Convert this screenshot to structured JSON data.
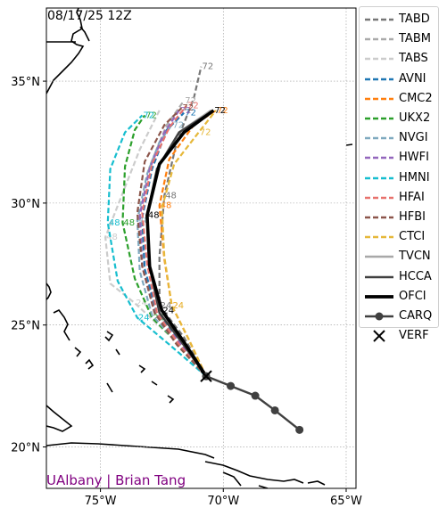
{
  "chart_data": {
    "type": "line",
    "title": "08/17/25 12Z",
    "credit": "UAlbany | Brian Tang",
    "xlim": [
      -77.2,
      -64.6
    ],
    "ylim": [
      18.3,
      38.0
    ],
    "x_ticks": [
      {
        "v": -75,
        "label": "75°W"
      },
      {
        "v": -70,
        "label": "70°W"
      },
      {
        "v": -65,
        "label": "65°W"
      }
    ],
    "y_ticks": [
      {
        "v": 20,
        "label": "20°N"
      },
      {
        "v": 25,
        "label": "25°N"
      },
      {
        "v": 30,
        "label": "30°N"
      },
      {
        "v": 35,
        "label": "35°N"
      }
    ],
    "grid": true,
    "legend_position": "outside-right",
    "series": [
      {
        "name": "TABD",
        "color": "#777777",
        "style": "dash",
        "points": [
          [
            -70.7,
            22.9
          ],
          [
            -71.6,
            24.5
          ],
          [
            -72.6,
            25.8
          ],
          [
            -72.6,
            27.8
          ],
          [
            -72.4,
            30.3
          ],
          [
            -71.9,
            32.5
          ],
          [
            -71.2,
            34.3
          ],
          [
            -70.9,
            35.6
          ]
        ],
        "labels": [
          {
            "text": "24",
            "i": 2
          },
          {
            "text": "48",
            "i": 4
          },
          {
            "text": "72",
            "i": 7
          }
        ]
      },
      {
        "name": "TABM",
        "color": "#aaaaaa",
        "style": "dash",
        "points": [
          [
            -70.7,
            22.9
          ],
          [
            -71.7,
            24.4
          ],
          [
            -72.8,
            25.6
          ],
          [
            -73.2,
            27.3
          ],
          [
            -73.4,
            29.5
          ],
          [
            -73.0,
            31.5
          ],
          [
            -72.3,
            33.2
          ],
          [
            -71.6,
            34.2
          ]
        ],
        "labels": [
          {
            "text": "72",
            "i": 7
          }
        ]
      },
      {
        "name": "TABS",
        "color": "#cccccc",
        "style": "dash",
        "points": [
          [
            -70.7,
            22.9
          ],
          [
            -72.0,
            24.4
          ],
          [
            -73.6,
            25.9
          ],
          [
            -74.6,
            26.7
          ],
          [
            -74.8,
            28.6
          ],
          [
            -74.1,
            30.4
          ],
          [
            -73.4,
            32.2
          ],
          [
            -72.6,
            33.8
          ]
        ],
        "labels": [
          {
            "text": "24",
            "i": 2
          },
          {
            "text": "48",
            "i": 4
          }
        ]
      },
      {
        "name": "AVNI",
        "color": "#1f77b4",
        "style": "dash",
        "points": [
          [
            -70.7,
            22.9
          ],
          [
            -71.8,
            24.3
          ],
          [
            -72.7,
            25.5
          ],
          [
            -73.2,
            27.3
          ],
          [
            -73.3,
            29.4
          ],
          [
            -72.9,
            31.4
          ],
          [
            -72.3,
            33.0
          ],
          [
            -71.6,
            33.7
          ]
        ],
        "labels": [
          {
            "text": "72",
            "i": 7
          }
        ]
      },
      {
        "name": "CMC2",
        "color": "#ff7f0e",
        "style": "dash",
        "points": [
          [
            -70.7,
            22.9
          ],
          [
            -71.4,
            24.4
          ],
          [
            -72.1,
            25.8
          ],
          [
            -72.4,
            27.7
          ],
          [
            -72.6,
            29.9
          ],
          [
            -72.2,
            31.8
          ],
          [
            -71.2,
            33.2
          ],
          [
            -70.3,
            33.8
          ]
        ],
        "labels": [
          {
            "text": "24",
            "i": 2
          },
          {
            "text": "48",
            "i": 4
          },
          {
            "text": "72",
            "i": 7
          }
        ]
      },
      {
        "name": "UKX2",
        "color": "#2ca02c",
        "style": "dash",
        "points": [
          [
            -70.7,
            22.9
          ],
          [
            -71.8,
            24.2
          ],
          [
            -72.9,
            25.3
          ],
          [
            -73.6,
            26.9
          ],
          [
            -74.1,
            29.2
          ],
          [
            -74.0,
            31.5
          ],
          [
            -73.6,
            33.0
          ],
          [
            -73.2,
            33.6
          ]
        ],
        "labels": [
          {
            "text": "24",
            "i": 2
          },
          {
            "text": "48",
            "i": 4
          },
          {
            "text": "72",
            "i": 7
          }
        ]
      },
      {
        "name": "NVGI",
        "color": "#7fa9bf",
        "style": "dash",
        "points": [
          [
            -70.7,
            22.9
          ],
          [
            -71.9,
            24.3
          ],
          [
            -72.9,
            25.4
          ],
          [
            -73.4,
            27.2
          ],
          [
            -73.5,
            29.3
          ],
          [
            -73.1,
            31.2
          ],
          [
            -72.6,
            32.5
          ],
          [
            -72.1,
            33.2
          ]
        ],
        "labels": [
          {
            "text": "48",
            "i": 4
          },
          {
            "text": "72",
            "i": 7
          }
        ]
      },
      {
        "name": "HWFI",
        "color": "#9467bd",
        "style": "dash",
        "points": [
          [
            -70.7,
            22.9
          ],
          [
            -71.8,
            24.3
          ],
          [
            -72.8,
            25.5
          ],
          [
            -73.3,
            27.4
          ],
          [
            -73.4,
            29.5
          ],
          [
            -73.0,
            31.4
          ],
          [
            -72.4,
            32.9
          ],
          [
            -71.8,
            33.8
          ]
        ],
        "labels": [
          {
            "text": "72",
            "i": 7
          }
        ]
      },
      {
        "name": "HMNI",
        "color": "#17becf",
        "style": "dash",
        "points": [
          [
            -70.7,
            22.9
          ],
          [
            -72.2,
            24.2
          ],
          [
            -73.5,
            25.3
          ],
          [
            -74.3,
            26.8
          ],
          [
            -74.7,
            29.2
          ],
          [
            -74.6,
            31.4
          ],
          [
            -74.0,
            32.9
          ],
          [
            -73.3,
            33.6
          ]
        ],
        "labels": [
          {
            "text": "24",
            "i": 2
          },
          {
            "text": "48",
            "i": 4
          },
          {
            "text": "72",
            "i": 7
          }
        ]
      },
      {
        "name": "HFAI",
        "color": "#e8726d",
        "style": "dash",
        "points": [
          [
            -70.7,
            22.9
          ],
          [
            -71.8,
            24.2
          ],
          [
            -72.7,
            25.5
          ],
          [
            -73.1,
            27.5
          ],
          [
            -73.3,
            29.6
          ],
          [
            -72.9,
            31.6
          ],
          [
            -72.2,
            33.1
          ],
          [
            -71.5,
            34.0
          ]
        ],
        "labels": [
          {
            "text": "72",
            "i": 7
          }
        ]
      },
      {
        "name": "HFBI",
        "color": "#8c564b",
        "style": "dash",
        "points": [
          [
            -70.7,
            22.9
          ],
          [
            -71.9,
            24.2
          ],
          [
            -72.8,
            25.5
          ],
          [
            -73.3,
            27.4
          ],
          [
            -73.5,
            29.6
          ],
          [
            -73.2,
            31.7
          ],
          [
            -72.4,
            33.2
          ],
          [
            -71.7,
            33.9
          ]
        ],
        "labels": [
          {
            "text": "72",
            "i": 7
          }
        ]
      },
      {
        "name": "CTCI",
        "color": "#e6b83a",
        "style": "dash",
        "points": [
          [
            -70.7,
            22.9
          ],
          [
            -71.4,
            24.4
          ],
          [
            -72.1,
            25.8
          ],
          [
            -72.4,
            27.8
          ],
          [
            -72.5,
            29.8
          ],
          [
            -72.0,
            31.6
          ],
          [
            -71.0,
            32.9
          ],
          [
            -70.3,
            33.8
          ]
        ],
        "labels": [
          {
            "text": "24",
            "i": 2
          },
          {
            "text": "72",
            "i": 6
          }
        ]
      },
      {
        "name": "TVCN",
        "color": "#a8a8a8",
        "style": "solid",
        "points": [
          [
            -70.7,
            22.9
          ],
          [
            -71.7,
            24.3
          ],
          [
            -72.6,
            25.5
          ],
          [
            -73.0,
            27.4
          ],
          [
            -73.1,
            29.5
          ],
          [
            -72.7,
            31.4
          ],
          [
            -71.8,
            32.9
          ],
          [
            -70.5,
            33.8
          ]
        ],
        "labels": []
      },
      {
        "name": "HCCA",
        "color": "#404040",
        "style": "solid",
        "points": [
          [
            -70.7,
            22.9
          ],
          [
            -71.7,
            24.3
          ],
          [
            -72.6,
            25.5
          ],
          [
            -73.0,
            27.4
          ],
          [
            -73.1,
            29.5
          ],
          [
            -72.7,
            31.4
          ],
          [
            -71.8,
            32.9
          ],
          [
            -70.4,
            33.8
          ]
        ],
        "labels": []
      },
      {
        "name": "OFCI",
        "color": "#000000",
        "style": "bold",
        "points": [
          [
            -70.7,
            22.9
          ],
          [
            -71.6,
            24.3
          ],
          [
            -72.5,
            25.6
          ],
          [
            -73.0,
            27.4
          ],
          [
            -73.1,
            29.5
          ],
          [
            -72.6,
            31.6
          ],
          [
            -71.6,
            32.9
          ],
          [
            -70.4,
            33.8
          ]
        ],
        "labels": [
          {
            "text": "24",
            "i": 2
          },
          {
            "text": "48",
            "i": 4
          },
          {
            "text": "72",
            "i": 7
          }
        ]
      },
      {
        "name": "CARQ",
        "color": "#404040",
        "style": "marker",
        "points": [
          [
            -70.7,
            22.9
          ],
          [
            -69.7,
            22.5
          ],
          [
            -68.7,
            22.1
          ],
          [
            -67.9,
            21.5
          ],
          [
            -66.9,
            20.7
          ]
        ],
        "labels": []
      },
      {
        "name": "VERF",
        "color": "#000000",
        "style": "x",
        "points": [
          [
            -70.7,
            22.9
          ]
        ],
        "labels": []
      }
    ]
  }
}
